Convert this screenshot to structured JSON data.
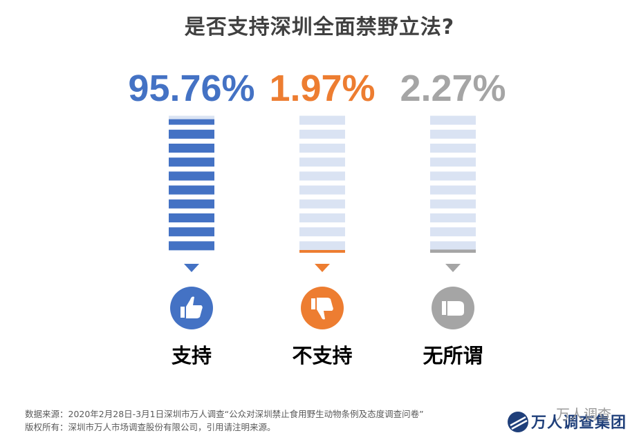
{
  "chart_data": {
    "type": "bar",
    "title": "是否支持深圳全面禁野立法?",
    "categories": [
      "支持",
      "不支持",
      "无所谓"
    ],
    "values": [
      95.76,
      1.97,
      2.27
    ],
    "value_labels": [
      "95.76%",
      "1.97%",
      "2.27%"
    ],
    "ylim": [
      0,
      100
    ],
    "grid": false,
    "colors": [
      "#4472c4",
      "#ed7d31",
      "#a5a5a5"
    ],
    "icons": [
      "thumbs-up-icon",
      "thumbs-down-icon",
      "thumb-sideways-icon"
    ]
  },
  "footer": {
    "source": "数据来源：2020年2月28日-3月1日深圳市万人调查“公众对深圳禁止食用野生动物条例及态度调查问卷”",
    "copyright": "版权所有：深圳市万人市场调查股份有限公司，引用请注明来源。"
  },
  "logo": {
    "name": "万人调查集团",
    "watermark": "万人调查"
  }
}
